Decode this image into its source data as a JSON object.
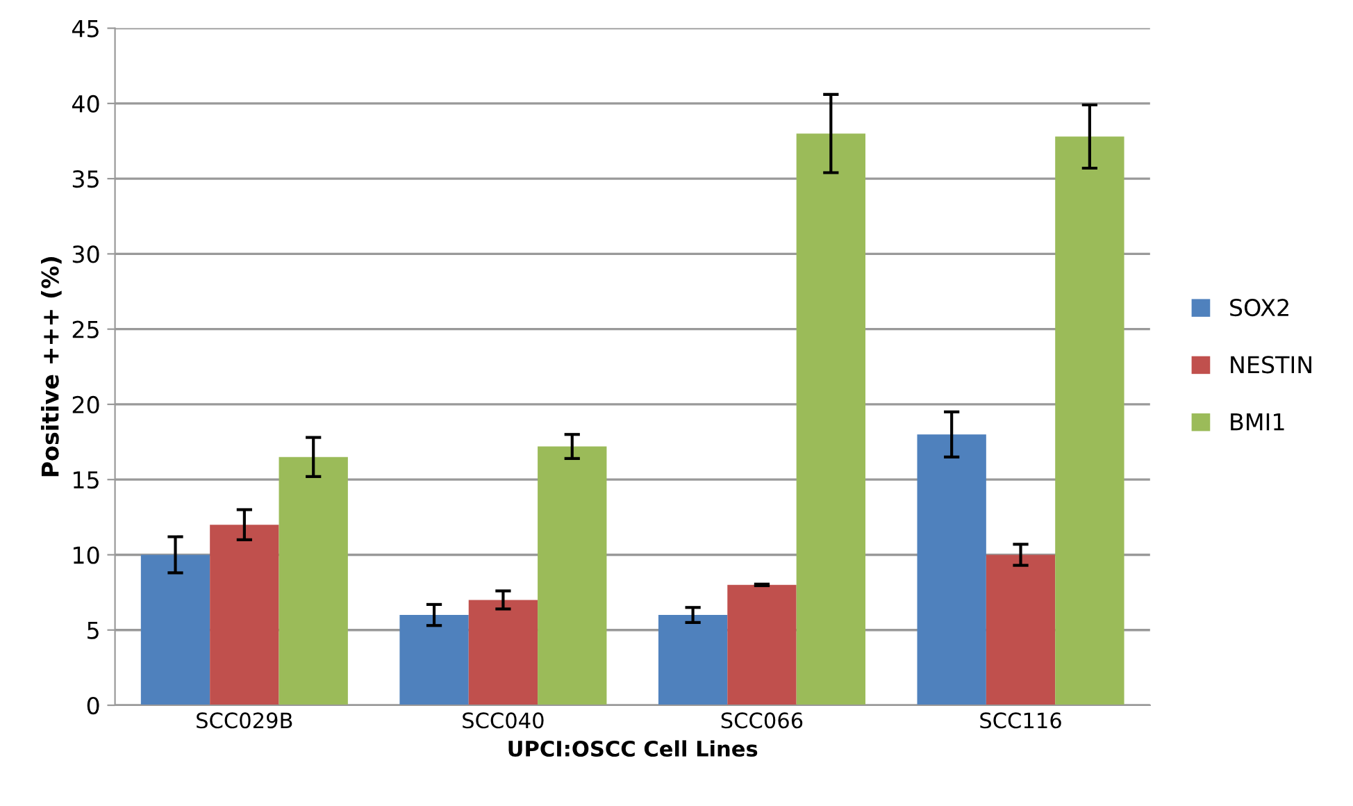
{
  "chart_data": {
    "type": "bar",
    "xlabel": "UPCI:OSCC Cell Lines",
    "ylabel": "Positive +++ (%)",
    "categories": [
      "SCC029B",
      "SCC040",
      "SCC066",
      "SCC116"
    ],
    "series": [
      {
        "name": "SOX2",
        "color": "#4f81bd",
        "values": [
          10,
          6,
          6,
          18
        ],
        "errors": [
          1.2,
          0.7,
          0.5,
          1.5
        ]
      },
      {
        "name": "NESTIN",
        "color": "#c0504d",
        "values": [
          12,
          7,
          8,
          10
        ],
        "errors": [
          1,
          0.6,
          0.05,
          0.7
        ]
      },
      {
        "name": "BMI1",
        "color": "#9bbb59",
        "values": [
          16.5,
          17.2,
          38,
          37.8
        ],
        "errors": [
          1.3,
          0.8,
          2.6,
          2.1
        ]
      }
    ],
    "ylim": [
      0,
      45
    ],
    "yticks": [
      0,
      5,
      10,
      15,
      20,
      25,
      30,
      35,
      40,
      45
    ],
    "grid": "y",
    "legend": "right"
  }
}
